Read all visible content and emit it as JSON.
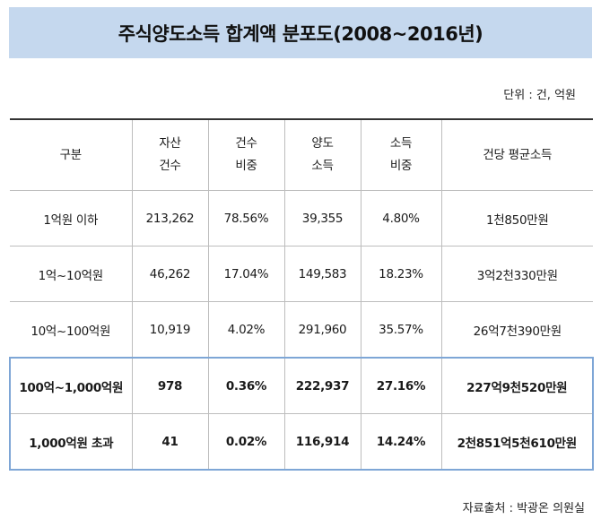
{
  "title": "주식양도소득 합계액 분포도(2008~2016년)",
  "unit": "단위 : 건, 억원",
  "source": "자료출처 : 박광온 의원실",
  "headers": [
    [
      "구분"
    ],
    [
      "자산",
      "건수"
    ],
    [
      "건수",
      "비중"
    ],
    [
      "양도",
      "소득"
    ],
    [
      "소득",
      "비중"
    ],
    [
      "건당 평균소득"
    ]
  ],
  "rows": [
    [
      "1억원 이하",
      "213,262",
      "78.56%",
      "39,355",
      "4.80%",
      "1천850만원"
    ],
    [
      "1억~10억원",
      "46,262",
      "17.04%",
      "149,583",
      "18.23%",
      "3억2천330만원"
    ],
    [
      "10억~100억원",
      "10,919",
      "4.02%",
      "291,960",
      "35.57%",
      "26억7천390만원"
    ],
    [
      "100억~1,000억원",
      "978",
      "0.36%",
      "222,937",
      "27.16%",
      "227억9천520만원"
    ],
    [
      "1,000억원 초과",
      "41",
      "0.02%",
      "116,914",
      "14.24%",
      "2천851억5천610만원"
    ]
  ],
  "colors": {
    "title_bg": "#c5d8ee",
    "highlight_border": "#7ea6d6"
  }
}
